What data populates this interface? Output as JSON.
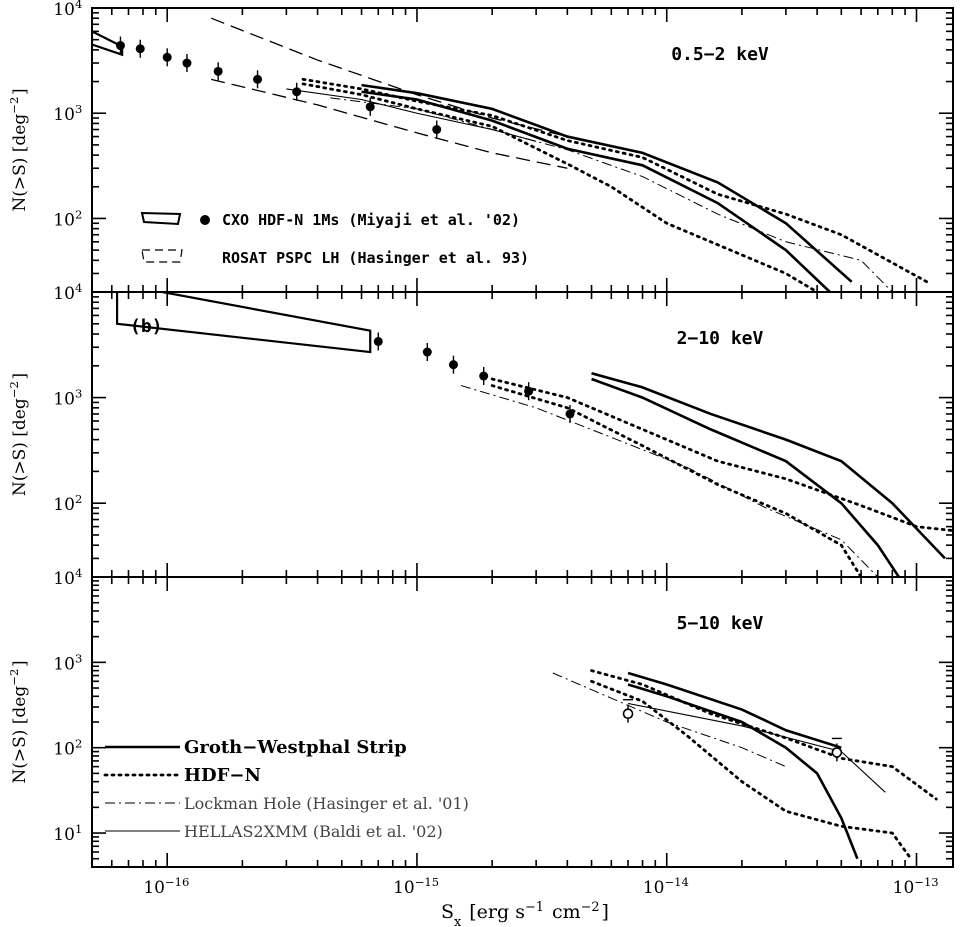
{
  "chart_data": [
    {
      "type": "line",
      "panel_label": "",
      "band": "0.5−2 keV",
      "xscale": "log",
      "yscale": "log",
      "xlim": [
        5e-17,
        1.4e-13
      ],
      "ylim": [
        20,
        10000
      ],
      "ytick_labels": [
        "10^4",
        "10^3",
        "10^2"
      ],
      "legend": [
        {
          "marker": "box+dot",
          "label": "CXO HDF-N 1Ms (Miyaji et al. '02)"
        },
        {
          "marker": "dashed-box",
          "label": "ROSAT PSPC LH (Hasinger et al. 93)"
        }
      ],
      "points": [
        {
          "x": 6.5e-17,
          "y": 4400
        },
        {
          "x": 7.8e-17,
          "y": 4100
        },
        {
          "x": 1e-16,
          "y": 3400
        },
        {
          "x": 1.2e-16,
          "y": 3000
        },
        {
          "x": 1.6e-16,
          "y": 2500
        },
        {
          "x": 2.3e-16,
          "y": 2100
        },
        {
          "x": 3.3e-16,
          "y": 1600
        },
        {
          "x": 6.5e-16,
          "y": 1150
        },
        {
          "x": 1.2e-15,
          "y": 700
        }
      ],
      "box": {
        "x": [
          5e-17,
          6.6e-17
        ],
        "y_upper": [
          6000,
          4300
        ],
        "y_lower": [
          4500,
          3600
        ]
      },
      "series": [
        {
          "name": "Groth-Westphal Strip",
          "style": "thick-solid",
          "x": [
            6e-16,
            1e-15,
            2e-15,
            4e-15,
            8e-15,
            1.6e-14,
            3e-14,
            5.5e-14
          ],
          "y": [
            1850,
            1550,
            1100,
            600,
            420,
            220,
            90,
            25
          ]
        },
        {
          "name": "Groth-Westphal Strip",
          "style": "thick-solid",
          "x": [
            6e-16,
            1e-15,
            2e-15,
            4e-15,
            8e-15,
            1.6e-14,
            3e-14,
            4.5e-14
          ],
          "y": [
            1600,
            1350,
            850,
            460,
            320,
            140,
            50,
            20
          ]
        },
        {
          "name": "HDF-N",
          "style": "thick-dotted",
          "x": [
            3.5e-16,
            6e-16,
            1e-15,
            2e-15,
            4e-15,
            8e-15,
            1.6e-14,
            3e-14,
            5e-14,
            1.1e-13
          ],
          "y": [
            2100,
            1700,
            1300,
            950,
            550,
            380,
            170,
            110,
            70,
            25
          ]
        },
        {
          "name": "HDF-N",
          "style": "thick-dotted",
          "x": [
            3.5e-16,
            6e-16,
            1e-15,
            2e-15,
            4e-15,
            6e-15,
            1e-14,
            2e-14,
            3e-14,
            4e-14
          ],
          "y": [
            1900,
            1500,
            1100,
            750,
            330,
            200,
            90,
            45,
            30,
            20
          ]
        },
        {
          "name": "Lockman Hole (Hasinger et al. '01)",
          "style": "thin-dashdot",
          "x": [
            4.5e-16,
            1e-15,
            2e-15,
            4e-15,
            8e-15,
            1.6e-14,
            3e-14,
            6e-14,
            8e-14
          ],
          "y": [
            1400,
            1100,
            700,
            450,
            250,
            110,
            60,
            40,
            20
          ]
        },
        {
          "name": "HELLAS2XMM (Baldi et al. '02)",
          "style": "thin-solid",
          "x": [
            3e-16,
            6e-16,
            1e-15,
            2e-15,
            3e-15
          ],
          "y": [
            1700,
            1350,
            1000,
            700,
            540
          ]
        },
        {
          "name": "ROSAT PSPC LH (Hasinger et al. 93)",
          "style": "dashed",
          "x": [
            1.5e-16,
            4e-16,
            1e-15,
            2e-15,
            4e-15
          ],
          "y": [
            8000,
            3200,
            1500,
            900,
            600
          ]
        },
        {
          "name": "ROSAT PSPC LH (Hasinger et al. 93)",
          "style": "dashed",
          "x": [
            1.5e-16,
            4e-16,
            1e-15,
            2e-15,
            4e-15
          ],
          "y": [
            2100,
            1200,
            650,
            420,
            300
          ]
        }
      ]
    },
    {
      "type": "line",
      "panel_label": "(b)",
      "band": "2−10 keV",
      "xscale": "log",
      "yscale": "log",
      "xlim": [
        5e-17,
        1.4e-13
      ],
      "ylim": [
        20,
        10000
      ],
      "ytick_labels": [
        "10^4",
        "10^3",
        "10^2"
      ],
      "points": [
        {
          "x": 7e-16,
          "y": 3400
        },
        {
          "x": 1.1e-15,
          "y": 2700
        },
        {
          "x": 1.4e-15,
          "y": 2050
        },
        {
          "x": 1.85e-15,
          "y": 1600
        },
        {
          "x": 2.8e-15,
          "y": 1150
        },
        {
          "x": 4.1e-15,
          "y": 700
        }
      ],
      "box": {
        "x": [
          6.3e-17,
          6.5e-16
        ],
        "y_upper": [
          12000,
          4300
        ],
        "y_lower": [
          5000,
          2700
        ]
      },
      "series": [
        {
          "name": "Groth-Westphal Strip",
          "style": "thick-solid",
          "x": [
            5e-15,
            8e-15,
            1.5e-14,
            3e-14,
            5e-14,
            8e-14,
            1.3e-13
          ],
          "y": [
            1700,
            1250,
            700,
            400,
            250,
            100,
            30
          ]
        },
        {
          "name": "Groth-Westphal Strip",
          "style": "thick-solid",
          "x": [
            5e-15,
            8e-15,
            1.5e-14,
            3e-14,
            5e-14,
            7e-14,
            8.5e-14
          ],
          "y": [
            1500,
            1000,
            500,
            250,
            100,
            40,
            20
          ]
        },
        {
          "name": "HDF-N",
          "style": "thick-dotted",
          "x": [
            2e-15,
            4e-15,
            8e-15,
            1.6e-14,
            3e-14,
            6e-14,
            1e-13,
            1.4e-13
          ],
          "y": [
            1500,
            1000,
            500,
            250,
            170,
            95,
            60,
            55
          ]
        },
        {
          "name": "HDF-N",
          "style": "thick-dotted",
          "x": [
            2e-15,
            4e-15,
            8e-15,
            1.6e-14,
            3e-14,
            5e-14,
            6e-14
          ],
          "y": [
            1300,
            800,
            350,
            150,
            80,
            40,
            20
          ]
        },
        {
          "name": "Lockman Hole (Hasinger et al. '01)",
          "style": "thin-dashdot",
          "x": [
            1.5e-15,
            3e-15,
            6e-15,
            1.2e-14,
            2.5e-14,
            5e-14,
            7e-14
          ],
          "y": [
            1300,
            800,
            420,
            220,
            90,
            45,
            20
          ]
        }
      ]
    },
    {
      "type": "line",
      "panel_label": "",
      "band": "5−10 keV",
      "xscale": "log",
      "yscale": "log",
      "xlim": [
        5e-17,
        1.4e-13
      ],
      "ylim": [
        4,
        10000
      ],
      "ytick_labels": [
        "10^4",
        "10^3",
        "10^2",
        "10^1"
      ],
      "legend": [
        {
          "style": "thick-solid",
          "label": "Groth−Westphal Strip"
        },
        {
          "style": "thick-dotted",
          "label": "HDF−N"
        },
        {
          "style": "thin-dashdot",
          "label": "Lockman Hole (Hasinger et al. '01)"
        },
        {
          "style": "thin-solid",
          "label": "HELLAS2XMM (Baldi et al. '02)"
        }
      ],
      "points": [
        {
          "x": 7e-15,
          "y": 250
        },
        {
          "x": 4.8e-14,
          "y": 88
        }
      ],
      "series": [
        {
          "name": "Groth-Westphal Strip",
          "style": "thick-solid",
          "x": [
            7e-15,
            1e-14,
            2e-14,
            3e-14,
            5e-14
          ],
          "y": [
            750,
            550,
            280,
            160,
            100
          ]
        },
        {
          "name": "Groth-Westphal Strip",
          "style": "thick-solid",
          "x": [
            7e-15,
            1e-14,
            2e-14,
            3e-14,
            4e-14,
            5e-14,
            5.8e-14
          ],
          "y": [
            550,
            400,
            200,
            100,
            50,
            15,
            5
          ]
        },
        {
          "name": "HDF-N",
          "style": "thick-dotted",
          "x": [
            5e-15,
            8e-15,
            1.5e-14,
            3e-14,
            5e-14,
            8e-14,
            1.2e-13
          ],
          "y": [
            800,
            550,
            250,
            130,
            75,
            60,
            25
          ]
        },
        {
          "name": "HDF-N",
          "style": "thick-dotted",
          "x": [
            5e-15,
            8e-15,
            1.2e-14,
            2e-14,
            3e-14,
            5e-14,
            8e-14,
            9.5e-14
          ],
          "y": [
            600,
            350,
            140,
            40,
            18,
            12,
            10,
            5
          ]
        },
        {
          "name": "Lockman Hole (Hasinger et al. '01)",
          "style": "thin-dashdot",
          "x": [
            3.5e-15,
            6e-15,
            1e-14,
            2e-14,
            3e-14
          ],
          "y": [
            750,
            380,
            200,
            100,
            60
          ]
        },
        {
          "name": "HELLAS2XMM (Baldi et al. '02)",
          "style": "thin-solid",
          "x": [
            7e-15,
            2e-14,
            5e-14,
            7.5e-14
          ],
          "y": [
            330,
            180,
            90,
            30
          ]
        }
      ]
    }
  ],
  "xtick_labels": [
    "10^-16",
    "10^-15",
    "10^-14",
    "10^-13"
  ],
  "ylabel": "N(>S)  [deg^-2]",
  "xlabel": "S_x  [erg s^-1 cm^-2]"
}
